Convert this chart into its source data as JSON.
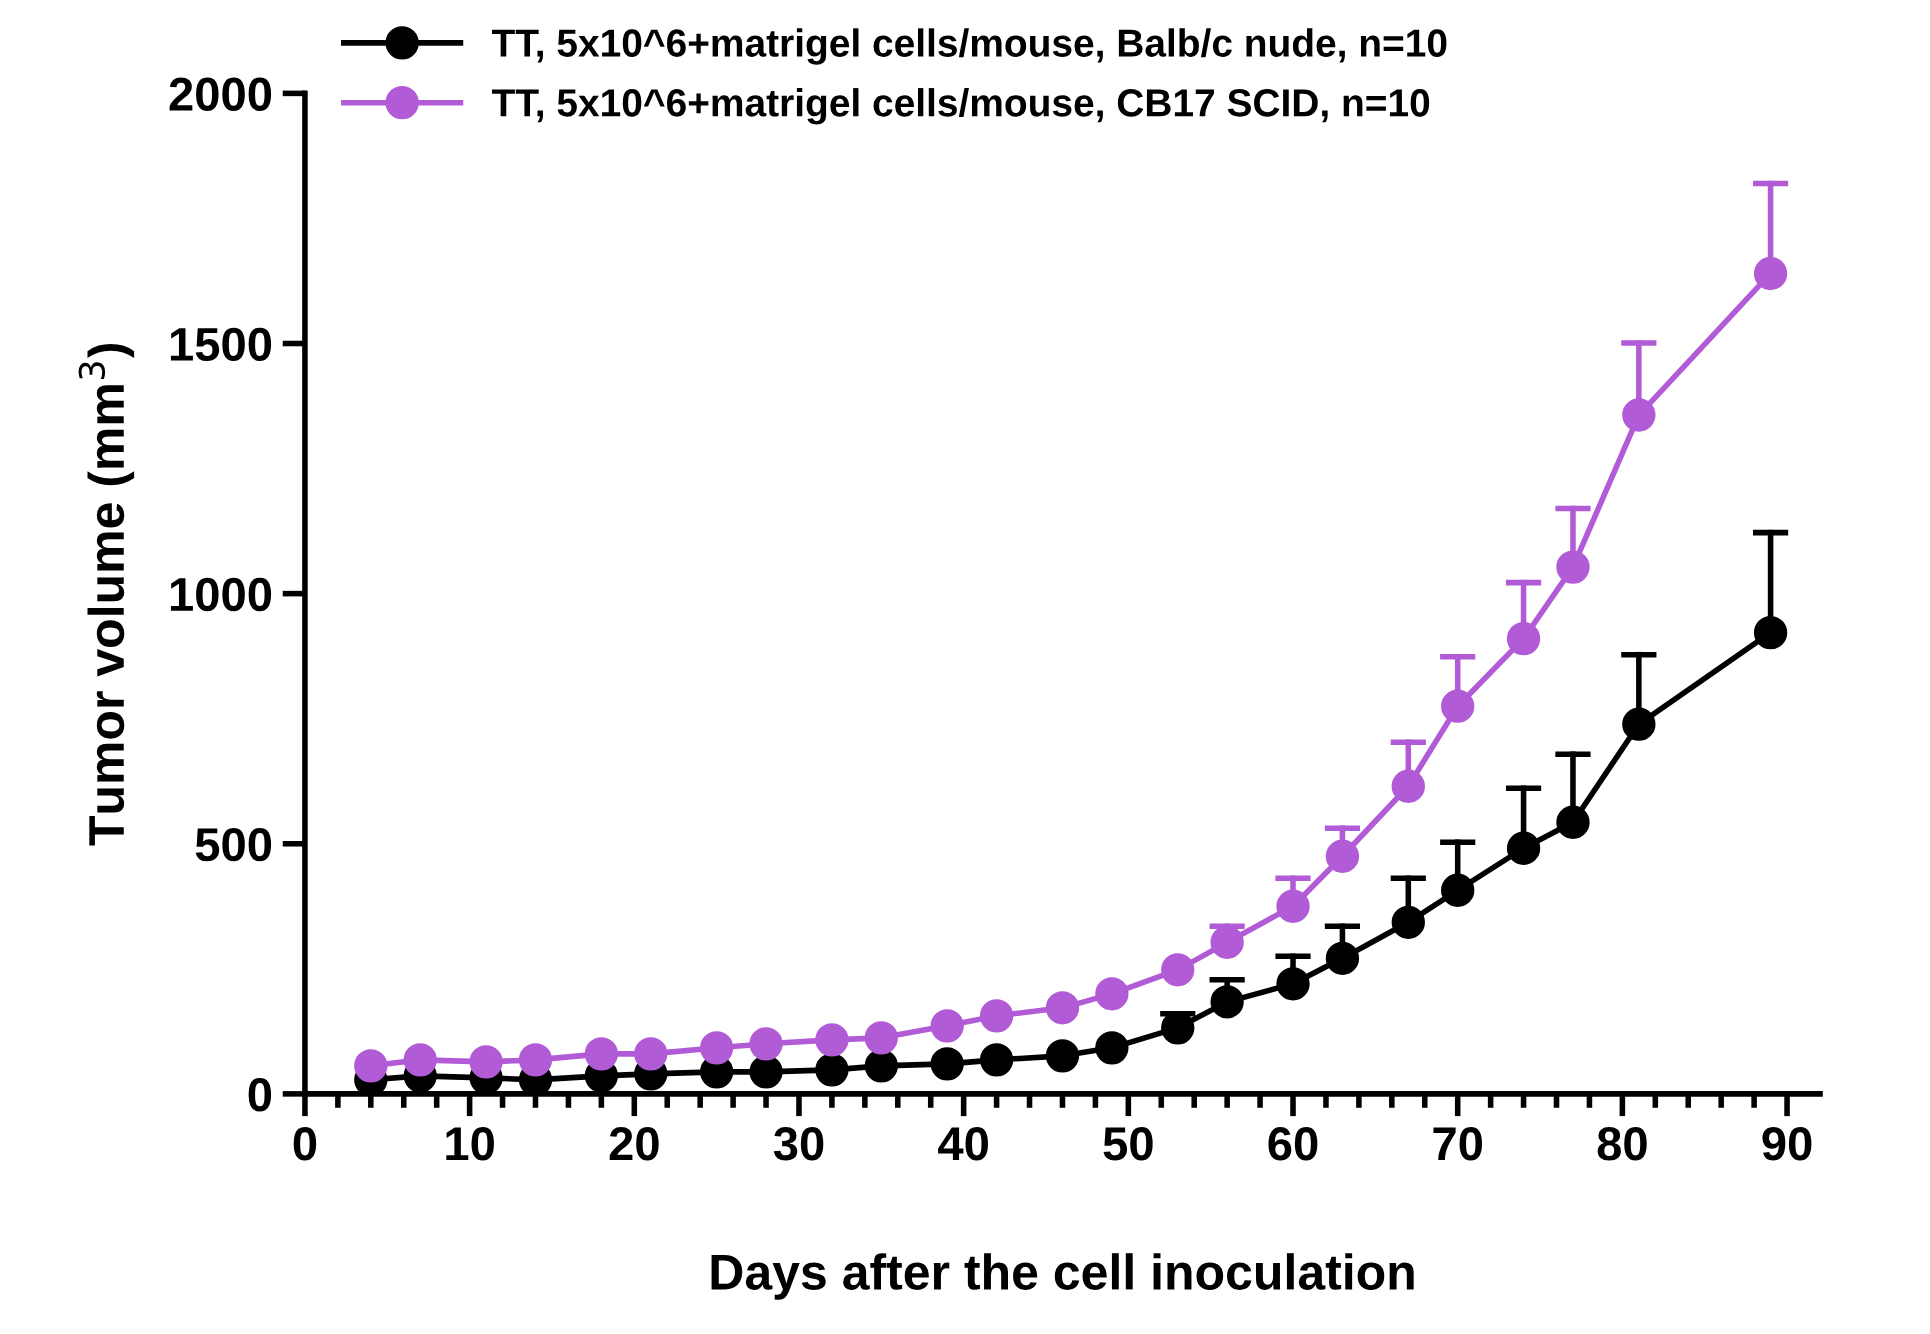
{
  "chart_data": {
    "type": "line",
    "xlabel": "Days after the cell inoculation",
    "ylabel": "Tumor volume (mm$^{3}$)",
    "xlim": [
      0,
      92
    ],
    "ylim": [
      0,
      2000
    ],
    "xticks": [
      0,
      {
        "value": 2,
        "label": null
      },
      {
        "value": 4,
        "label": null
      },
      {
        "value": 6,
        "label": null
      },
      {
        "value": 8,
        "label": null
      },
      10,
      {
        "value": 12,
        "label": null
      },
      {
        "value": 14,
        "label": null
      },
      {
        "value": 16,
        "label": null
      },
      {
        "value": 18,
        "label": null
      },
      20,
      {
        "value": 22,
        "label": null
      },
      {
        "value": 24,
        "label": null
      },
      {
        "value": 26,
        "label": null
      },
      {
        "value": 28,
        "label": null
      },
      30,
      {
        "value": 32,
        "label": null
      },
      {
        "value": 34,
        "label": null
      },
      {
        "value": 36,
        "label": null
      },
      {
        "value": 38,
        "label": null
      },
      40,
      {
        "value": 42,
        "label": null
      },
      {
        "value": 44,
        "label": null
      },
      {
        "value": 46,
        "label": null
      },
      {
        "value": 48,
        "label": null
      },
      50,
      {
        "value": 52,
        "label": null
      },
      {
        "value": 54,
        "label": null
      },
      {
        "value": 56,
        "label": null
      },
      {
        "value": 58,
        "label": null
      },
      60,
      {
        "value": 62,
        "label": null
      },
      {
        "value": 64,
        "label": null
      },
      {
        "value": 66,
        "label": null
      },
      {
        "value": 68,
        "label": null
      },
      70,
      {
        "value": 72,
        "label": null
      },
      {
        "value": 74,
        "label": null
      },
      {
        "value": 76,
        "label": null
      },
      {
        "value": 78,
        "label": null
      },
      80,
      {
        "value": 82,
        "label": null
      },
      {
        "value": 84,
        "label": null
      },
      {
        "value": 86,
        "label": null
      },
      {
        "value": 88,
        "label": null
      },
      90
    ],
    "yticks": [
      0,
      500,
      1000,
      1500,
      2000
    ],
    "legend": "top",
    "grid": false,
    "line_style": "solid",
    "series": [
      {
        "name": "TT, 5x10^6+matrigel cells/mouse, Balb/c nude, n=10",
        "color": "#000000",
        "marker": "circle",
        "x": [
          4,
          7,
          11,
          14,
          18,
          21,
          25,
          28,
          32,
          35,
          39,
          42,
          46,
          49,
          53,
          56,
          60,
          63,
          67,
          70,
          74,
          77,
          81,
          89
        ],
        "values": [
          28,
          36,
          32,
          28,
          36,
          40,
          44,
          44,
          48,
          56,
          60,
          68,
          76,
          92,
          132,
          184,
          220,
          271,
          343,
          407,
          491,
          543,
          739,
          922
        ],
        "errors": [
          null,
          null,
          null,
          null,
          null,
          null,
          null,
          null,
          null,
          null,
          null,
          null,
          null,
          null,
          [
            132,
            160
          ],
          [
            184,
            228
          ],
          [
            220,
            275
          ],
          [
            271,
            335
          ],
          [
            343,
            431
          ],
          [
            407,
            503
          ],
          [
            491,
            611
          ],
          [
            543,
            679
          ],
          [
            739,
            878
          ],
          [
            922,
            1122
          ]
        ]
      },
      {
        "name": "TT, 5x10^6+matrigel cells/mouse, CB17 SCID, n=10",
        "color": "#b25bd6",
        "marker": "circle",
        "x": [
          4,
          7,
          11,
          14,
          18,
          21,
          25,
          28,
          32,
          35,
          39,
          42,
          46,
          49,
          53,
          56,
          60,
          63,
          67,
          70,
          74,
          77,
          81,
          89
        ],
        "values": [
          56,
          68,
          64,
          68,
          80,
          80,
          92,
          100,
          108,
          112,
          136,
          156,
          172,
          200,
          248,
          303,
          375,
          475,
          615,
          775,
          910,
          1053,
          1357,
          1640
        ],
        "errors": [
          null,
          null,
          null,
          null,
          null,
          null,
          null,
          null,
          null,
          null,
          null,
          null,
          null,
          null,
          null,
          [
            303,
            335
          ],
          [
            375,
            431
          ],
          [
            475,
            531
          ],
          [
            615,
            703
          ],
          [
            775,
            874
          ],
          [
            910,
            1022
          ],
          [
            1053,
            1170
          ],
          [
            1357,
            1501
          ],
          [
            1640,
            1820
          ]
        ]
      }
    ]
  }
}
